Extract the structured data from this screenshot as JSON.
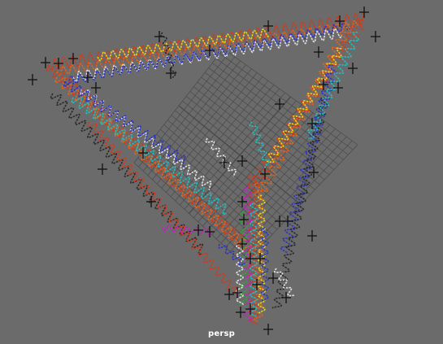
{
  "viewport": {
    "camera_label": "persp",
    "background_color": "#6b6b6b",
    "grid_color": "#4a4a4a",
    "locator_color": "#111111"
  },
  "helix_colors": [
    "#d23a1a",
    "#e2641c",
    "#2b34c8",
    "#20c0c0",
    "#e0e0e0",
    "#c31fc3",
    "#e8d21c",
    "#2a2a2a",
    "#2ea83a"
  ]
}
